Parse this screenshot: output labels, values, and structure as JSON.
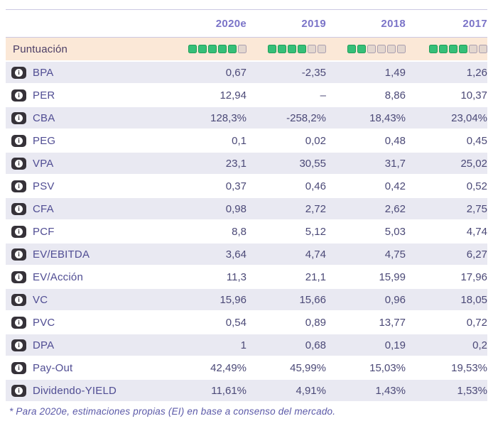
{
  "header": {
    "columns": [
      "2020e",
      "2019",
      "2018",
      "2017"
    ]
  },
  "score_row": {
    "label": "Puntuación",
    "ratings": [
      {
        "filled": 5,
        "total": 6
      },
      {
        "filled": 4,
        "total": 6
      },
      {
        "filled": 2,
        "total": 6
      },
      {
        "filled": 4,
        "total": 6
      }
    ]
  },
  "rows": [
    {
      "label": "BPA",
      "values": [
        "0,67",
        "-2,35",
        "1,49",
        "1,26"
      ]
    },
    {
      "label": "PER",
      "values": [
        "12,94",
        "–",
        "8,86",
        "10,37"
      ]
    },
    {
      "label": "CBA",
      "values": [
        "128,3%",
        "-258,2%",
        "18,43%",
        "23,04%"
      ]
    },
    {
      "label": "PEG",
      "values": [
        "0,1",
        "0,02",
        "0,48",
        "0,45"
      ]
    },
    {
      "label": "VPA",
      "values": [
        "23,1",
        "30,55",
        "31,7",
        "25,02"
      ]
    },
    {
      "label": "PSV",
      "values": [
        "0,37",
        "0,46",
        "0,42",
        "0,52"
      ]
    },
    {
      "label": "CFA",
      "values": [
        "0,98",
        "2,72",
        "2,62",
        "2,75"
      ]
    },
    {
      "label": "PCF",
      "values": [
        "8,8",
        "5,12",
        "5,03",
        "4,74"
      ]
    },
    {
      "label": "EV/EBITDA",
      "values": [
        "3,64",
        "4,74",
        "4,75",
        "6,27"
      ]
    },
    {
      "label": "EV/Acción",
      "values": [
        "11,3",
        "21,1",
        "15,99",
        "17,96"
      ]
    },
    {
      "label": "VC",
      "values": [
        "15,96",
        "15,66",
        "0,96",
        "18,05"
      ]
    },
    {
      "label": "PVC",
      "values": [
        "0,54",
        "0,89",
        "13,77",
        "0,72"
      ]
    },
    {
      "label": "DPA",
      "values": [
        "1",
        "0,68",
        "0,19",
        "0,2"
      ]
    },
    {
      "label": "Pay-Out",
      "values": [
        "42,49%",
        "45,99%",
        "15,03%",
        "19,53%"
      ]
    },
    {
      "label": "Dividendo-YIELD",
      "values": [
        "11,61%",
        "4,91%",
        "1,43%",
        "1,53%"
      ]
    }
  ],
  "icons": {
    "info": "info-icon",
    "rating_filled": "rating-square-filled",
    "rating_empty": "rating-square-empty"
  },
  "colors": {
    "rating_filled": "#35bf78",
    "rating_filled_border": "#1f9e59",
    "rating_empty": "#e3d6ce",
    "score_row_bg": "#fbe8d7",
    "row_shade_bg": "#e9e9f2",
    "header_text": "#7b74c8",
    "value_text": "#4b4977",
    "label_text": "#504d93",
    "divider": "#cbc8e2",
    "info_badge_bg": "#363239"
  },
  "footnote": "* Para 2020e, estimaciones propias (EI) en base a consenso del mercado."
}
